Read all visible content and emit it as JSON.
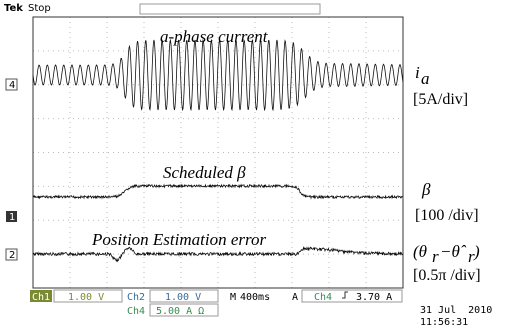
{
  "header": {
    "brand": "Tek",
    "status": "Stop"
  },
  "traces": [
    {
      "marker": "4",
      "title": "a-phase current",
      "symbol": "i",
      "subscript": "a",
      "scale": "[5A/div]"
    },
    {
      "marker": "1",
      "title": "Scheduled β",
      "symbol": "β",
      "scale": "[100 /div]"
    },
    {
      "marker": "2",
      "title": "Position Estimation error",
      "symbol": "(θ",
      "subscript": "r",
      "middle": "−θ̂",
      "subscript2": "r",
      "close": ")",
      "scale": "[0.5π /div]"
    }
  ],
  "status_bar": {
    "ch1": "Ch1",
    "ch1_scale": "1.00 V",
    "ch2": "Ch2",
    "ch2_scale": "1.00 V",
    "m": "M",
    "timebase": "400ms",
    "trigger_source": "A",
    "trigger_ch": "Ch4",
    "trigger_level": "3.70 A",
    "ch4": "Ch4",
    "ch4_scale": "5.00 A Ω"
  },
  "timestamp": {
    "date": "31 Jul  2010",
    "time": "11:56:31"
  }
}
